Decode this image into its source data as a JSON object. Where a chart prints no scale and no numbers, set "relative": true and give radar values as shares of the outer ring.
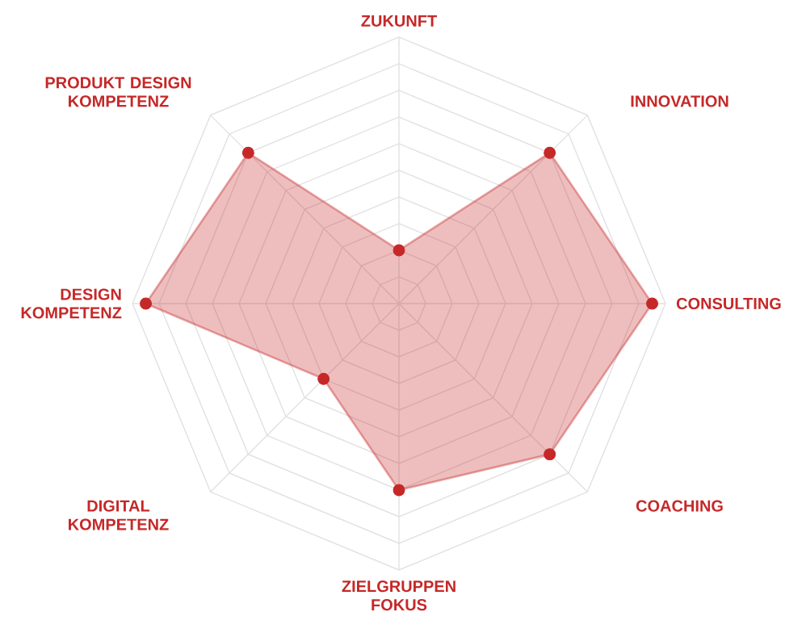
{
  "chart_data": {
    "type": "radar",
    "relative": true,
    "grid": true,
    "marker": "circle",
    "categories": [
      "ZUKUNFT",
      "INNOVATION",
      "CONSULTING",
      "COACHING",
      "ZIELGRUPPEN FOKUS",
      "DIGITAL KOMPETENZ",
      "DESIGN KOMPETENZ",
      "PRODUKT DESIGN KOMPETENZ"
    ],
    "series": [
      {
        "color": "#c62828",
        "values": [
          0.2,
          0.8,
          0.95,
          0.8,
          0.7,
          0.4,
          0.95,
          0.8
        ]
      }
    ]
  }
}
